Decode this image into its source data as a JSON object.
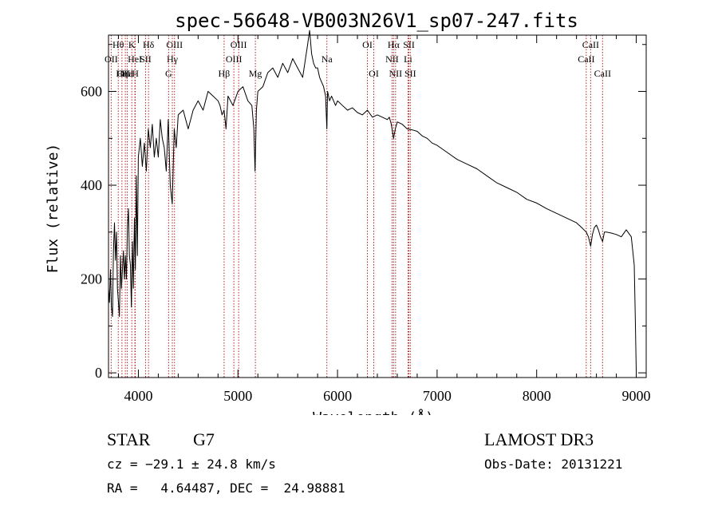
{
  "chart_data": {
    "type": "line",
    "title": "spec-56648-VB003N26V1_sp07-247.fits",
    "xlabel": "Wavelength (Å)",
    "ylabel": "Flux (relative)",
    "xlim": [
      3700,
      9100
    ],
    "ylim": [
      -10,
      720
    ],
    "xticks": [
      4000,
      5000,
      6000,
      7000,
      8000,
      9000
    ],
    "yticks": [
      0,
      200,
      400,
      600
    ],
    "grid": false,
    "series": [
      {
        "name": "flux",
        "color": "#000000",
        "x": [
          3700,
          3710,
          3720,
          3730,
          3740,
          3750,
          3760,
          3770,
          3780,
          3790,
          3800,
          3810,
          3820,
          3830,
          3840,
          3850,
          3860,
          3870,
          3880,
          3890,
          3900,
          3910,
          3920,
          3930,
          3940,
          3950,
          3960,
          3970,
          3980,
          3990,
          4000,
          4020,
          4040,
          4060,
          4080,
          4100,
          4120,
          4140,
          4160,
          4180,
          4200,
          4220,
          4240,
          4260,
          4280,
          4300,
          4320,
          4340,
          4360,
          4380,
          4400,
          4450,
          4500,
          4550,
          4600,
          4650,
          4700,
          4750,
          4800,
          4820,
          4840,
          4861,
          4880,
          4900,
          4950,
          5000,
          5050,
          5100,
          5140,
          5160,
          5172,
          5185,
          5200,
          5250,
          5300,
          5350,
          5400,
          5450,
          5500,
          5550,
          5600,
          5650,
          5700,
          5720,
          5740,
          5760,
          5780,
          5800,
          5820,
          5840,
          5860,
          5880,
          5893,
          5900,
          5920,
          5940,
          5960,
          5980,
          6000,
          6050,
          6100,
          6150,
          6200,
          6250,
          6300,
          6350,
          6400,
          6450,
          6500,
          6520,
          6540,
          6563,
          6580,
          6600,
          6650,
          6700,
          6750,
          6800,
          6850,
          6900,
          6950,
          7000,
          7100,
          7200,
          7300,
          7400,
          7500,
          7600,
          7700,
          7800,
          7900,
          8000,
          8100,
          8200,
          8300,
          8400,
          8450,
          8498,
          8520,
          8542,
          8560,
          8580,
          8600,
          8620,
          8640,
          8662,
          8680,
          8700,
          8750,
          8800,
          8850,
          8900,
          8950,
          8980,
          8990,
          9000
        ],
        "values": [
          180,
          150,
          220,
          140,
          120,
          260,
          320,
          240,
          300,
          180,
          150,
          120,
          250,
          180,
          220,
          260,
          200,
          250,
          200,
          310,
          350,
          250,
          230,
          140,
          280,
          180,
          330,
          220,
          420,
          250,
          460,
          500,
          440,
          490,
          430,
          520,
          480,
          530,
          460,
          500,
          460,
          540,
          500,
          480,
          430,
          540,
          400,
          360,
          520,
          480,
          550,
          560,
          520,
          560,
          580,
          560,
          600,
          590,
          580,
          570,
          550,
          560,
          520,
          590,
          570,
          600,
          610,
          580,
          570,
          520,
          430,
          560,
          600,
          610,
          640,
          650,
          630,
          660,
          640,
          670,
          650,
          630,
          700,
          730,
          680,
          660,
          650,
          650,
          630,
          620,
          610,
          590,
          520,
          600,
          580,
          590,
          580,
          570,
          580,
          570,
          560,
          565,
          555,
          550,
          560,
          545,
          550,
          545,
          540,
          545,
          530,
          500,
          520,
          535,
          530,
          520,
          518,
          515,
          505,
          500,
          490,
          485,
          470,
          455,
          445,
          435,
          420,
          405,
          395,
          385,
          370,
          362,
          350,
          340,
          330,
          320,
          310,
          300,
          290,
          270,
          295,
          310,
          315,
          305,
          290,
          280,
          300,
          300,
          298,
          295,
          290,
          305,
          290,
          230,
          120,
          5
        ]
      }
    ],
    "line_labels": [
      {
        "label": "Hθ",
        "x": 3798,
        "row": 1
      },
      {
        "label": "OII",
        "x": 3727,
        "row": 2
      },
      {
        "label": "OIII",
        "x": 3869,
        "row": 3
      },
      {
        "label": "Hε",
        "x": 3889,
        "row": 3
      },
      {
        "label": "K",
        "x": 3934,
        "row": 1
      },
      {
        "label": "HeI",
        "x": 3965,
        "row": 2
      },
      {
        "label": "Hη",
        "x": 3835,
        "row": 3
      },
      {
        "label": "H",
        "x": 3969,
        "row": 3
      },
      {
        "label": "SII",
        "x": 4072,
        "row": 2
      },
      {
        "label": "Hδ",
        "x": 4102,
        "row": 1
      },
      {
        "label": "OIII",
        "x": 4363,
        "row": 1
      },
      {
        "label": "Hγ",
        "x": 4341,
        "row": 2
      },
      {
        "label": "G",
        "x": 4304,
        "row": 3
      },
      {
        "label": "OIII",
        "x": 5007,
        "row": 1
      },
      {
        "label": "OIII",
        "x": 4959,
        "row": 2
      },
      {
        "label": "Hβ",
        "x": 4861,
        "row": 3
      },
      {
        "label": "Mg",
        "x": 5175,
        "row": 3
      },
      {
        "label": "Na",
        "x": 5893,
        "row": 2
      },
      {
        "label": "OI",
        "x": 6300,
        "row": 1
      },
      {
        "label": "OI",
        "x": 6364,
        "row": 3
      },
      {
        "label": "Hα",
        "x": 6563,
        "row": 1
      },
      {
        "label": "NII",
        "x": 6548,
        "row": 2
      },
      {
        "label": "NII",
        "x": 6583,
        "row": 3
      },
      {
        "label": "SII",
        "x": 6717,
        "row": 1
      },
      {
        "label": "Li",
        "x": 6708,
        "row": 2
      },
      {
        "label": "SII",
        "x": 6731,
        "row": 3
      },
      {
        "label": "CaII",
        "x": 8542,
        "row": 1
      },
      {
        "label": "CaII",
        "x": 8498,
        "row": 2
      },
      {
        "label": "CaII",
        "x": 8662,
        "row": 3
      }
    ]
  },
  "info": {
    "object_class": "STAR",
    "subclass": "G7",
    "survey": "LAMOST DR3",
    "redshift_line": "cz = −29.1 ± 24.8 km/s",
    "obs_date_line": "Obs-Date: 20131221",
    "coords_line": "RA =   4.64487, DEC =  24.98881"
  }
}
